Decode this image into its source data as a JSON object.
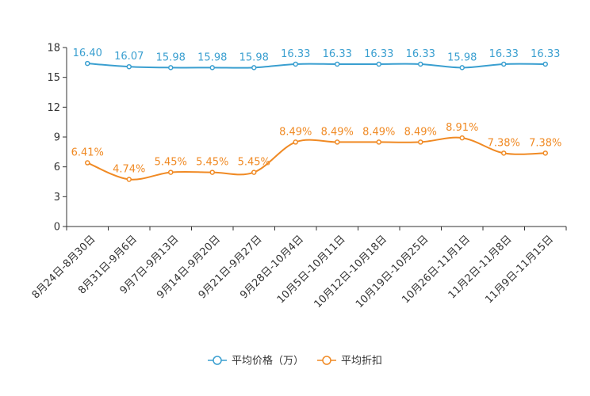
{
  "chart_data": {
    "type": "line",
    "title": "",
    "xlabel": "",
    "ylabel": "",
    "ylim": [
      0,
      18
    ],
    "yticks": [
      0,
      3,
      6,
      9,
      12,
      15,
      18
    ],
    "grid": false,
    "legend_position": "bottom",
    "categories": [
      "8月24日-8月30日",
      "8月31日-9月6日",
      "9月7日-9月13日",
      "9月14日-9月20日",
      "9月21日-9月27日",
      "9月28日-10月4日",
      "10月5日-10月11日",
      "10月12日-10月18日",
      "10月19日-10月25日",
      "10月26日-11月1日",
      "11月2日-11月8日",
      "11月9日-11月15日"
    ],
    "series": [
      {
        "name": "平均价格（万）",
        "color": "#3a9fd0",
        "values": [
          16.4,
          16.07,
          15.98,
          15.98,
          15.98,
          16.33,
          16.33,
          16.33,
          16.33,
          15.98,
          16.33,
          16.33
        ],
        "labels": [
          "16.40",
          "16.07",
          "15.98",
          "15.98",
          "15.98",
          "16.33",
          "16.33",
          "16.33",
          "16.33",
          "15.98",
          "16.33",
          "16.33"
        ]
      },
      {
        "name": "平均折扣",
        "color": "#f08a24",
        "values": [
          6.41,
          4.74,
          5.45,
          5.45,
          5.45,
          8.49,
          8.49,
          8.49,
          8.49,
          8.91,
          7.38,
          7.38
        ],
        "labels": [
          "6.41%",
          "4.74%",
          "5.45%",
          "5.45%",
          "5.45%",
          "8.49%",
          "8.49%",
          "8.49%",
          "8.49%",
          "8.91%",
          "7.38%",
          "7.38%"
        ]
      }
    ]
  }
}
